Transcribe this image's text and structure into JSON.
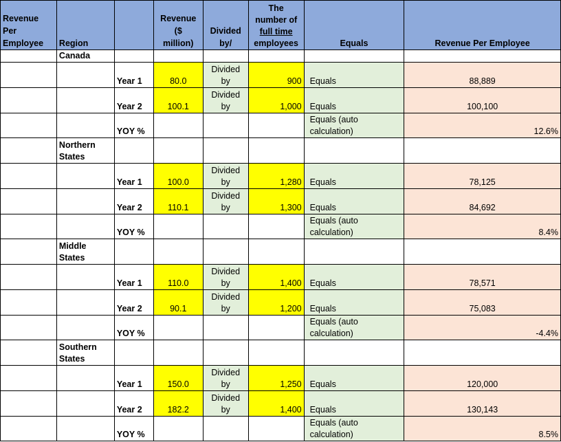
{
  "header": {
    "rev_per_emp_1": "Revenue",
    "rev_per_emp_2": "Per",
    "rev_per_emp_3": "Employee",
    "region": "Region",
    "revenue_1": "Revenue",
    "revenue_2": "($",
    "revenue_3": "million)",
    "divided_1": "Divided",
    "divided_2": "by/",
    "fte_1": "The",
    "fte_2": "number of",
    "fte_3": "full time",
    "fte_4": "employees",
    "equals": "Equals",
    "rpe": "Revenue Per Employee"
  },
  "regions": [
    {
      "name_1": "Canada",
      "name_2": "",
      "y1": {
        "label": "Year 1",
        "revenue": "80.0",
        "div_1": "Divided",
        "div_2": "by",
        "fte": "900",
        "equals": "Equals",
        "rpe": "88,889"
      },
      "y2": {
        "label": "Year 2",
        "revenue": "100.1",
        "div_1": "Divided",
        "div_2": "by",
        "fte": "1,000",
        "equals": "Equals",
        "rpe": "100,100"
      },
      "yoy": {
        "label": "YOY %",
        "equals_1": "Equals (auto",
        "equals_2": "calculation)",
        "value": "12.6%"
      }
    },
    {
      "name_1": "Northern",
      "name_2": "States",
      "y1": {
        "label": "Year 1",
        "revenue": "100.0",
        "div_1": "Divided",
        "div_2": "by",
        "fte": "1,280",
        "equals": "Equals",
        "rpe": "78,125"
      },
      "y2": {
        "label": "Year 2",
        "revenue": "110.1",
        "div_1": "Divided",
        "div_2": "by",
        "fte": "1,300",
        "equals": "Equals",
        "rpe": "84,692"
      },
      "yoy": {
        "label": "YOY %",
        "equals_1": "Equals (auto",
        "equals_2": "calculation)",
        "value": "8.4%"
      }
    },
    {
      "name_1": "Middle",
      "name_2": "States",
      "y1": {
        "label": "Year 1",
        "revenue": "110.0",
        "div_1": "Divided",
        "div_2": "by",
        "fte": "1,400",
        "equals": "Equals",
        "rpe": "78,571"
      },
      "y2": {
        "label": "Year 2",
        "revenue": "90.1",
        "div_1": "Divided",
        "div_2": "by",
        "fte": "1,200",
        "equals": "Equals",
        "rpe": "75,083"
      },
      "yoy": {
        "label": "YOY %",
        "equals_1": "Equals (auto",
        "equals_2": "calculation)",
        "value": "-4.4%"
      }
    },
    {
      "name_1": "Southern",
      "name_2": "States",
      "y1": {
        "label": "Year 1",
        "revenue": "150.0",
        "div_1": "Divided",
        "div_2": "by",
        "fte": "1,250",
        "equals": "Equals",
        "rpe": "120,000"
      },
      "y2": {
        "label": "Year 2",
        "revenue": "182.2",
        "div_1": "Divided",
        "div_2": "by",
        "fte": "1,400",
        "equals": "Equals",
        "rpe": "130,143"
      },
      "yoy": {
        "label": "YOY %",
        "equals_1": "Equals (auto",
        "equals_2": "calculation)",
        "value": "8.5%"
      }
    }
  ],
  "colors": {
    "header": "#8eaadb",
    "input": "#ffff00",
    "equals": "#e2efda",
    "result": "#fce4d6"
  }
}
